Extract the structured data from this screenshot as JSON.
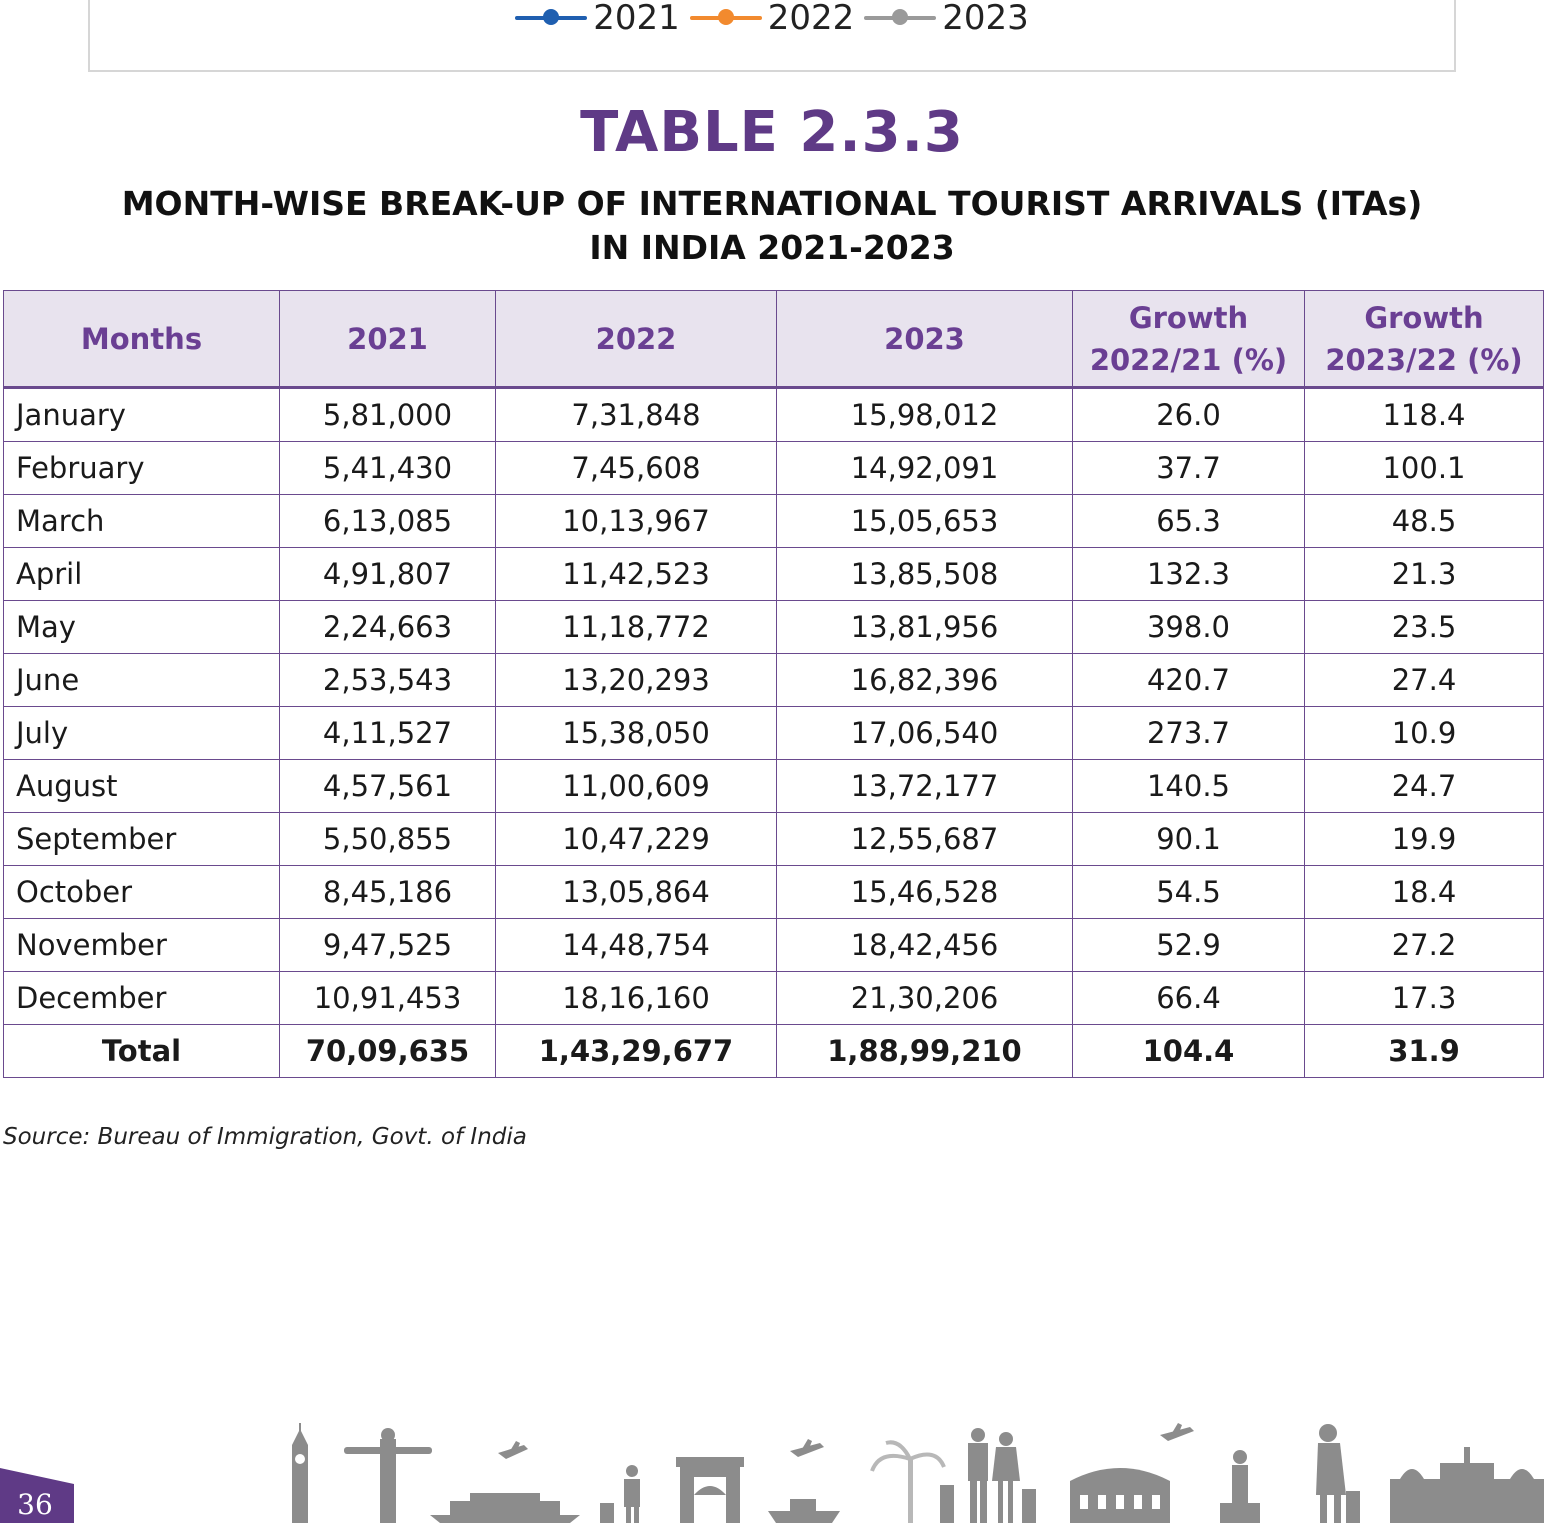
{
  "legend": {
    "items": [
      {
        "label": "2021",
        "color": "#1f5fb0"
      },
      {
        "label": "2022",
        "color": "#f28a2e"
      },
      {
        "label": "2023",
        "color": "#9a9a9a"
      }
    ]
  },
  "table_number": "TABLE 2.3.3",
  "table_title_line1": "MONTH-WISE BREAK-UP OF INTERNATIONAL TOURIST ARRIVALS (ITAs)",
  "table_title_line2": "IN INDIA 2021-2023",
  "headers": {
    "months": "Months",
    "y2021": "2021",
    "y2022": "2022",
    "y2023": "2023",
    "growth_2022_line1": "Growth",
    "growth_2022_line2": "2022/21 (%)",
    "growth_2023_line1": "Growth",
    "growth_2023_line2": "2023/22 (%)"
  },
  "rows": [
    {
      "month": "January",
      "y2021": "5,81,000",
      "y2022": "7,31,848",
      "y2023": "15,98,012",
      "g22": "26.0",
      "g23": "118.4"
    },
    {
      "month": "February",
      "y2021": "5,41,430",
      "y2022": "7,45,608",
      "y2023": "14,92,091",
      "g22": "37.7",
      "g23": "100.1"
    },
    {
      "month": "March",
      "y2021": "6,13,085",
      "y2022": "10,13,967",
      "y2023": "15,05,653",
      "g22": "65.3",
      "g23": "48.5"
    },
    {
      "month": "April",
      "y2021": "4,91,807",
      "y2022": "11,42,523",
      "y2023": "13,85,508",
      "g22": "132.3",
      "g23": "21.3"
    },
    {
      "month": "May",
      "y2021": "2,24,663",
      "y2022": "11,18,772",
      "y2023": "13,81,956",
      "g22": "398.0",
      "g23": "23.5"
    },
    {
      "month": "June",
      "y2021": "2,53,543",
      "y2022": "13,20,293",
      "y2023": "16,82,396",
      "g22": "420.7",
      "g23": "27.4"
    },
    {
      "month": "July",
      "y2021": "4,11,527",
      "y2022": "15,38,050",
      "y2023": "17,06,540",
      "g22": "273.7",
      "g23": "10.9"
    },
    {
      "month": "August",
      "y2021": "4,57,561",
      "y2022": "11,00,609",
      "y2023": "13,72,177",
      "g22": "140.5",
      "g23": "24.7"
    },
    {
      "month": "September",
      "y2021": "5,50,855",
      "y2022": "10,47,229",
      "y2023": "12,55,687",
      "g22": "90.1",
      "g23": "19.9"
    },
    {
      "month": "October",
      "y2021": "8,45,186",
      "y2022": "13,05,864",
      "y2023": "15,46,528",
      "g22": "54.5",
      "g23": "18.4"
    },
    {
      "month": "November",
      "y2021": "9,47,525",
      "y2022": "14,48,754",
      "y2023": "18,42,456",
      "g22": "52.9",
      "g23": "27.2"
    },
    {
      "month": "December",
      "y2021": "10,91,453",
      "y2022": "18,16,160",
      "y2023": "21,30,206",
      "g22": "66.4",
      "g23": "17.3"
    }
  ],
  "total": {
    "label": "Total",
    "y2021": "70,09,635",
    "y2022": "1,43,29,677",
    "y2023": "1,88,99,210",
    "g22": "104.4",
    "g23": "31.9"
  },
  "source": "Source: Bureau of Immigration, Govt. of India",
  "page_number": "36",
  "colors": {
    "accent": "#5f3a86",
    "header_bg": "#e8e3ee",
    "border": "#6a4a8e",
    "skyline": "#8c8c8c"
  },
  "footer_illustration": "travel-landmarks-skyline"
}
